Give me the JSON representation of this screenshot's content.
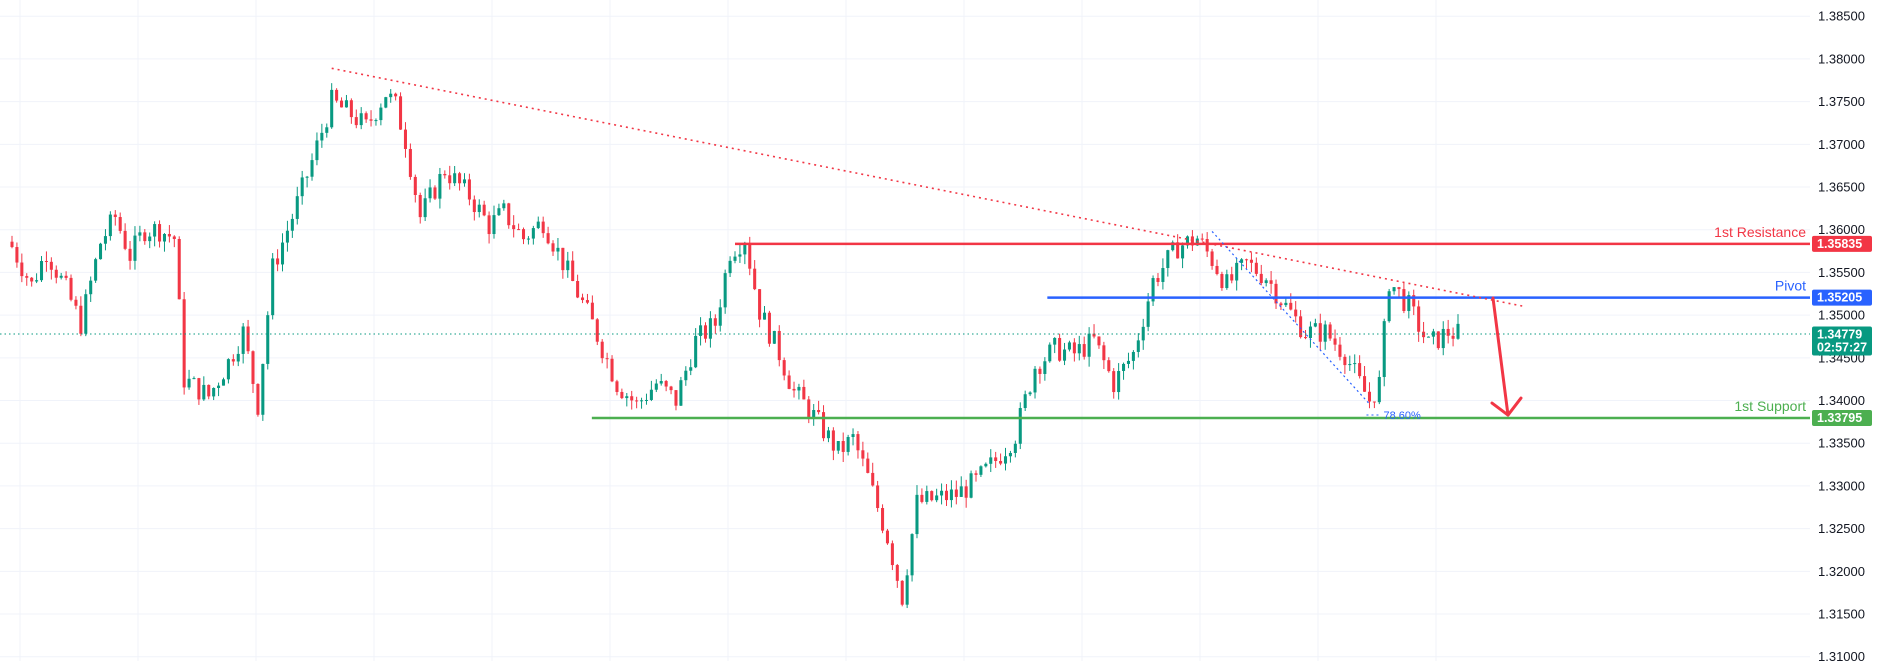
{
  "chart_data": {
    "type": "candlestick",
    "price_axis": {
      "ticks": [
        "1.38500",
        "1.38000",
        "1.37500",
        "1.37000",
        "1.36500",
        "1.36000",
        "1.35500",
        "1.35000",
        "1.34500",
        "1.34000",
        "1.33500",
        "1.33000",
        "1.32500",
        "1.32000",
        "1.31500",
        "1.31000"
      ],
      "range": [
        1.3095,
        1.3869
      ]
    },
    "current_price": {
      "value": 1.34779,
      "label": "1.34779",
      "countdown": "02:57:27",
      "color": "#089981"
    },
    "levels": [
      {
        "id": "resistance",
        "label": "1st Resistance",
        "value": 1.35835,
        "value_label": "1.35835",
        "color": "#f23645"
      },
      {
        "id": "pivot",
        "label": "Pivot",
        "value": 1.35205,
        "value_label": "1.35205",
        "color": "#2962ff"
      },
      {
        "id": "support",
        "label": "1st Support",
        "value": 1.33795,
        "value_label": "1.33795",
        "color": "#4caf50"
      }
    ],
    "fib_label": "78.60%",
    "trendline": {
      "from_price": 1.3789,
      "to_price": 1.351,
      "color": "#f23645",
      "style": "dotted"
    },
    "forecast_arrow": {
      "from_price": 1.352,
      "to_price": 1.3383,
      "direction": "down",
      "color": "#f23645"
    },
    "colors": {
      "up": "#089981",
      "down": "#f23645",
      "grid": "#f0f3fa"
    },
    "waypoints": [
      [
        0,
        1.358
      ],
      [
        4,
        1.3535
      ],
      [
        7,
        1.3575
      ],
      [
        11,
        1.353
      ],
      [
        14,
        1.349
      ],
      [
        18,
        1.3585
      ],
      [
        21,
        1.3615
      ],
      [
        24,
        1.357
      ],
      [
        27,
        1.36
      ],
      [
        30,
        1.36
      ],
      [
        33,
        1.359
      ],
      [
        35,
        1.3425
      ],
      [
        40,
        1.3405
      ],
      [
        44,
        1.3445
      ],
      [
        47,
        1.348
      ],
      [
        50,
        1.3395
      ],
      [
        53,
        1.3555
      ],
      [
        57,
        1.3615
      ],
      [
        61,
        1.368
      ],
      [
        65,
        1.375
      ],
      [
        69,
        1.3735
      ],
      [
        72,
        1.372
      ],
      [
        76,
        1.376
      ],
      [
        78,
        1.3745
      ],
      [
        80,
        1.3705
      ],
      [
        83,
        1.3615
      ],
      [
        88,
        1.367
      ],
      [
        93,
        1.364
      ],
      [
        97,
        1.3605
      ],
      [
        100,
        1.362
      ],
      [
        104,
        1.359
      ],
      [
        108,
        1.361
      ],
      [
        113,
        1.355
      ],
      [
        118,
        1.349
      ],
      [
        123,
        1.342
      ],
      [
        127,
        1.3395
      ],
      [
        131,
        1.342
      ],
      [
        135,
        1.34
      ],
      [
        139,
        1.347
      ],
      [
        143,
        1.349
      ],
      [
        146,
        1.3575
      ],
      [
        149,
        1.359
      ],
      [
        152,
        1.3505
      ],
      [
        156,
        1.3455
      ],
      [
        159,
        1.341
      ],
      [
        162,
        1.339
      ],
      [
        165,
        1.3365
      ],
      [
        168,
        1.334
      ],
      [
        171,
        1.3355
      ],
      [
        174,
        1.331
      ],
      [
        178,
        1.324
      ],
      [
        181,
        1.317
      ],
      [
        184,
        1.328
      ],
      [
        188,
        1.3285
      ],
      [
        192,
        1.329
      ],
      [
        196,
        1.3305
      ],
      [
        200,
        1.333
      ],
      [
        204,
        1.336
      ],
      [
        208,
        1.344
      ],
      [
        212,
        1.346
      ],
      [
        216,
        1.3455
      ],
      [
        220,
        1.347
      ],
      [
        224,
        1.342
      ],
      [
        228,
        1.3455
      ],
      [
        232,
        1.354
      ],
      [
        237,
        1.358
      ],
      [
        241,
        1.359
      ],
      [
        244,
        1.3565
      ],
      [
        247,
        1.3535
      ],
      [
        251,
        1.356
      ],
      [
        255,
        1.3545
      ],
      [
        259,
        1.351
      ],
      [
        263,
        1.348
      ],
      [
        267,
        1.348
      ],
      [
        271,
        1.3455
      ],
      [
        274,
        1.342
      ],
      [
        276,
        1.34
      ],
      [
        278,
        1.342
      ],
      [
        280,
        1.354
      ],
      [
        284,
        1.351
      ],
      [
        288,
        1.3465
      ],
      [
        292,
        1.348
      ],
      [
        294,
        1.3478
      ]
    ]
  }
}
